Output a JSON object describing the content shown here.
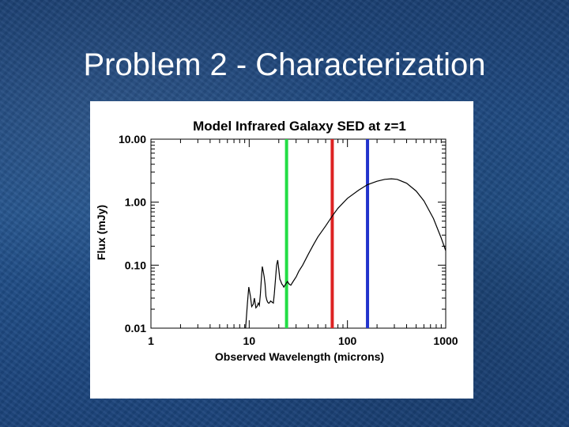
{
  "slide": {
    "title": "Problem 2 - Characterization"
  },
  "chart_data": {
    "type": "line",
    "title": "Model Infrared Galaxy SED at z=1",
    "xlabel": "Observed Wavelength (microns)",
    "ylabel": "Flux (mJy)",
    "x_scale": "log",
    "y_scale": "log",
    "xlim": [
      1,
      1000
    ],
    "ylim": [
      0.01,
      10
    ],
    "xticks": [
      {
        "value": 1,
        "label": "1"
      },
      {
        "value": 10,
        "label": "10"
      },
      {
        "value": 100,
        "label": "100"
      },
      {
        "value": 1000,
        "label": "1000"
      }
    ],
    "yticks": [
      {
        "value": 0.01,
        "label": "0.01"
      },
      {
        "value": 0.1,
        "label": "0.10"
      },
      {
        "value": 1,
        "label": "1.00"
      },
      {
        "value": 10,
        "label": "10.00"
      }
    ],
    "grid": false,
    "series": [
      {
        "color": "#000000",
        "x": [
          9.2,
          9.6,
          9.9,
          10.3,
          10.6,
          11.0,
          11.3,
          11.7,
          12.0,
          12.4,
          12.7,
          13.0,
          13.3,
          13.6,
          13.9,
          14.2,
          14.5,
          14.8,
          15.1,
          15.4,
          15.7,
          16.0,
          16.5,
          17.0,
          17.6,
          18.0,
          18.5,
          19.0,
          19.5,
          20.0,
          20.5,
          21.0,
          21.5,
          22.0,
          22.5,
          23.5,
          24.5,
          25.5,
          26.5,
          28,
          30,
          32,
          35,
          40,
          45,
          50,
          60,
          70,
          80,
          100,
          130,
          160,
          200,
          240,
          280,
          320,
          400,
          500,
          600,
          750,
          900,
          1000
        ],
        "y": [
          0.01,
          0.025,
          0.045,
          0.032,
          0.022,
          0.024,
          0.03,
          0.021,
          0.022,
          0.025,
          0.023,
          0.035,
          0.06,
          0.095,
          0.08,
          0.065,
          0.05,
          0.032,
          0.028,
          0.026,
          0.025,
          0.025,
          0.027,
          0.026,
          0.025,
          0.035,
          0.06,
          0.1,
          0.12,
          0.085,
          0.06,
          0.055,
          0.05,
          0.048,
          0.045,
          0.05,
          0.055,
          0.05,
          0.048,
          0.055,
          0.065,
          0.08,
          0.1,
          0.15,
          0.21,
          0.28,
          0.42,
          0.6,
          0.8,
          1.15,
          1.55,
          1.9,
          2.15,
          2.3,
          2.35,
          2.3,
          2.0,
          1.5,
          1.05,
          0.55,
          0.27,
          0.17
        ]
      }
    ],
    "markers": [
      {
        "x": 24,
        "color": "#22dd44"
      },
      {
        "x": 70,
        "color": "#dd2222"
      },
      {
        "x": 160,
        "color": "#2233cc"
      }
    ]
  }
}
